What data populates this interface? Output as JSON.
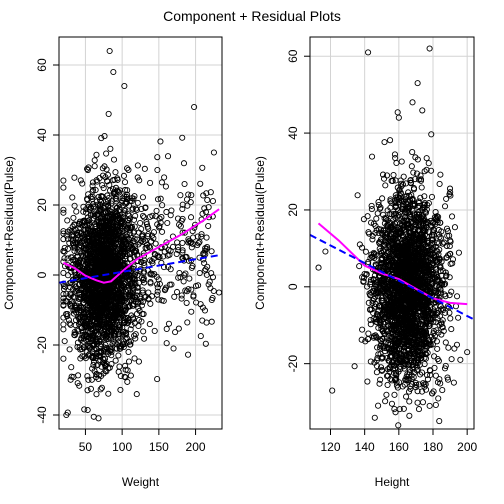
{
  "title": "Component + Residual Plots",
  "colors": {
    "points": "#000000",
    "smooth": "#ff00ff",
    "linear": "#0000ff",
    "grid": "#d3d3d3"
  },
  "chart_data": [
    {
      "type": "scatter",
      "xlabel": "Weight",
      "ylabel": "Component+Residual(Pulse)",
      "xlim": [
        14,
        236
      ],
      "ylim": [
        -44,
        68
      ],
      "x_ticks": [
        50,
        100,
        150,
        200
      ],
      "y_ticks": [
        -40,
        -20,
        0,
        20,
        40,
        60
      ],
      "grid": true,
      "cloud": {
        "x_center": 75,
        "x_spread": 22,
        "y_spread": 12,
        "count": 2600,
        "x_min": 20,
        "x_max": 235
      },
      "notable_points": [
        [
          83,
          64
        ],
        [
          103,
          54
        ],
        [
          88,
          58
        ],
        [
          198,
          48
        ],
        [
          225,
          35
        ],
        [
          232,
          -5
        ],
        [
          203,
          11
        ],
        [
          170,
          -21
        ],
        [
          24,
          -40
        ],
        [
          148,
          30
        ],
        [
          185,
          26
        ],
        [
          190,
          23
        ]
      ],
      "series": [
        {
          "name": "",
          "kind": "smooth",
          "x": [
            20,
            35,
            50,
            65,
            75,
            85,
            100,
            120,
            150,
            180,
            210,
            232
          ],
          "y": [
            3.5,
            2,
            -0.2,
            -1.5,
            -2.2,
            -1.8,
            1,
            4.5,
            8,
            11.5,
            15.5,
            18.8
          ]
        },
        {
          "name": "",
          "kind": "linear",
          "x": [
            14,
            236
          ],
          "y": [
            -2.2,
            5.8
          ]
        }
      ]
    },
    {
      "type": "scatter",
      "xlabel": "Height",
      "ylabel": "Component+Residual(Pulse)",
      "xlim": [
        108,
        204
      ],
      "ylim": [
        -37,
        65
      ],
      "x_ticks": [
        120,
        140,
        160,
        180,
        200
      ],
      "y_ticks": [
        -20,
        0,
        20,
        40,
        60
      ],
      "grid": true,
      "cloud": {
        "x_center": 165,
        "x_spread": 10,
        "y_spread": 12,
        "count": 2600,
        "x_min": 112,
        "x_max": 203
      },
      "notable_points": [
        [
          178,
          62
        ],
        [
          142,
          61
        ],
        [
          171,
          53
        ],
        [
          168,
          48
        ],
        [
          113,
          5
        ],
        [
          121,
          -27
        ],
        [
          196,
          -19
        ],
        [
          200,
          -17
        ],
        [
          160,
          44
        ],
        [
          155,
          -24
        ]
      ],
      "series": [
        {
          "name": "",
          "kind": "smooth",
          "x": [
            113,
            125,
            140,
            150,
            160,
            170,
            180,
            190,
            200
          ],
          "y": [
            16.5,
            12,
            5.5,
            3.5,
            2,
            -0.5,
            -3,
            -4.2,
            -4.5
          ]
        },
        {
          "name": "",
          "kind": "linear",
          "x": [
            108,
            204
          ],
          "y": [
            13.5,
            -8.5
          ]
        }
      ]
    }
  ]
}
